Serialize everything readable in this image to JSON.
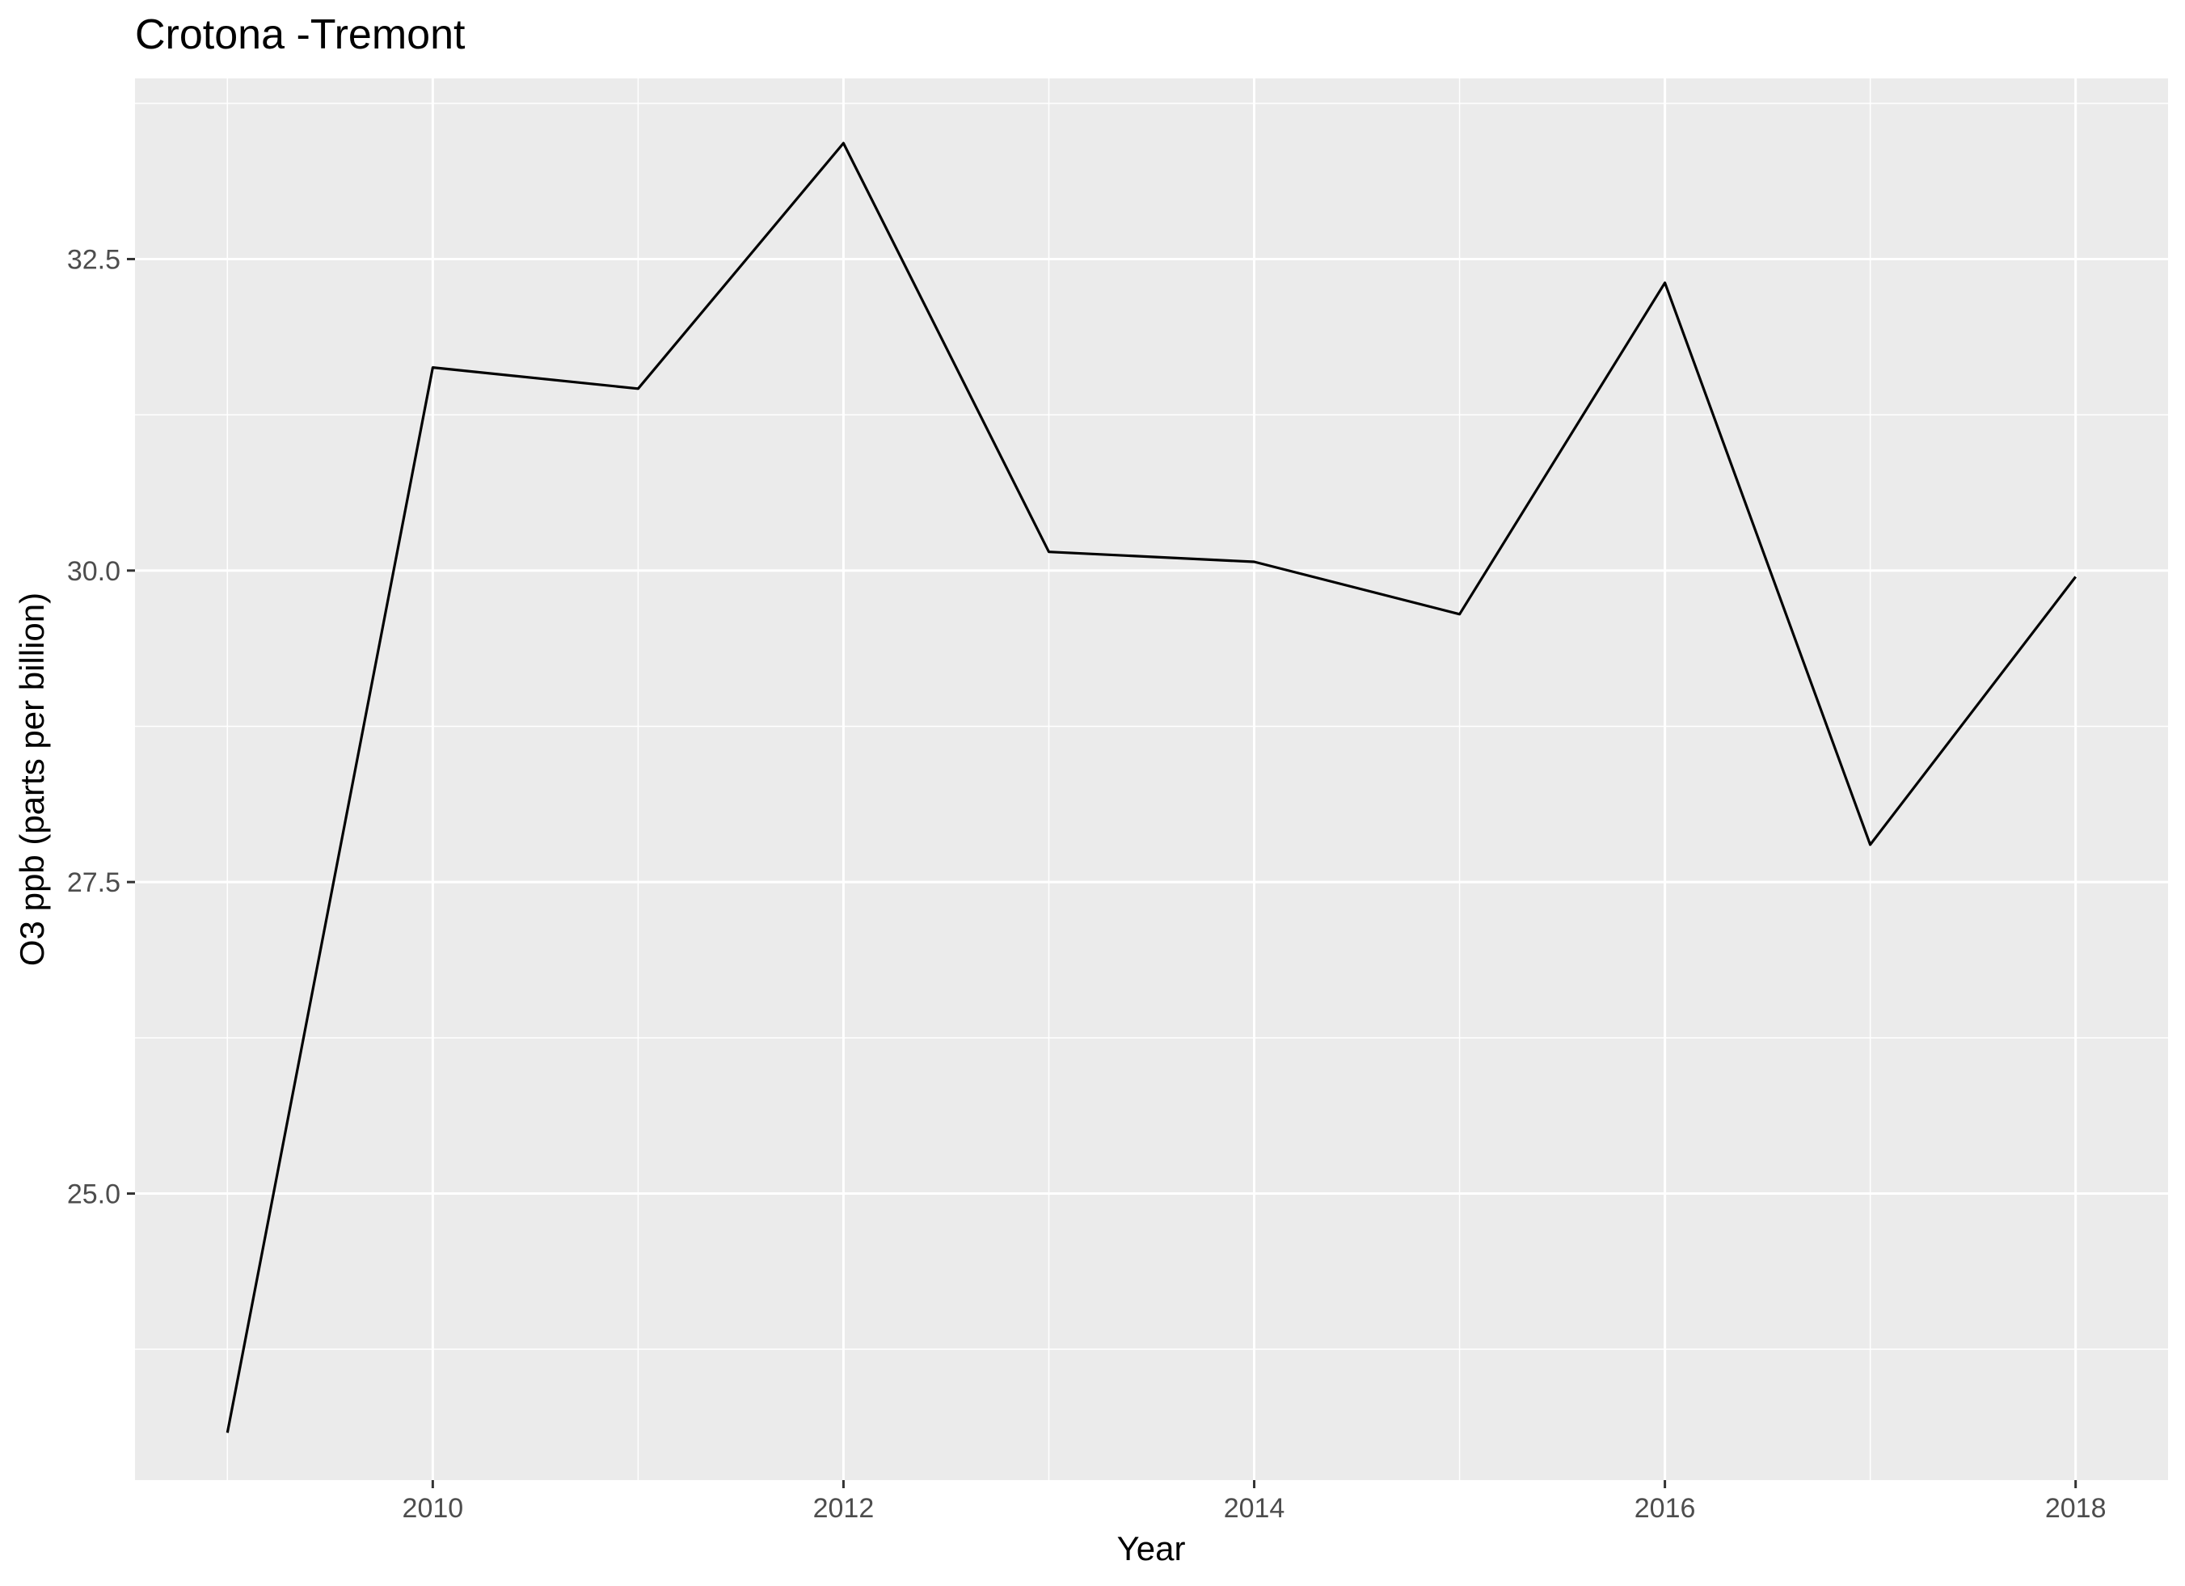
{
  "chart_data": {
    "type": "line",
    "title": "Crotona -Tremont",
    "xlabel": "Year",
    "ylabel": "O3 ppb (parts per billion)",
    "x": [
      2009,
      2010,
      2011,
      2012,
      2013,
      2014,
      2015,
      2016,
      2017,
      2018
    ],
    "series": [
      {
        "values": [
          23.08,
          31.63,
          31.46,
          33.43,
          30.15,
          30.07,
          29.65,
          32.31,
          27.8,
          29.95
        ]
      }
    ],
    "xlim": [
      2008.55,
      2018.45
    ],
    "ylim": [
      22.7,
      33.95
    ],
    "x_ticks": [
      2010,
      2012,
      2014,
      2016,
      2018
    ],
    "x_tick_labels": [
      "2010",
      "2012",
      "2014",
      "2016",
      "2018"
    ],
    "y_ticks": [
      25.0,
      27.5,
      30.0,
      32.5
    ],
    "y_tick_labels": [
      "25.0",
      "27.5",
      "30.0",
      "32.5"
    ],
    "grid": true,
    "colors": {
      "panel_background": "#ebebeb",
      "grid_major": "#ffffff",
      "line": "#000000",
      "tick_label": "#4d4d4d"
    }
  }
}
